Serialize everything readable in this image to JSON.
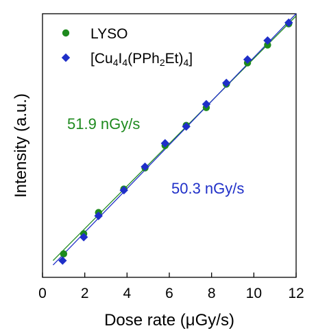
{
  "chart_data": {
    "type": "scatter",
    "xlabel": "Dose rate (μGy/s)",
    "ylabel": "Intensity (a.u.)",
    "xlim": [
      0,
      12
    ],
    "ylim": [
      0,
      11.8
    ],
    "x_ticks": [
      0,
      2,
      4,
      6,
      8,
      10,
      12
    ],
    "y_ticks": [],
    "grid": false,
    "legend_position": "top-left",
    "series": [
      {
        "name": "LYSO",
        "marker": "circle",
        "color": "#1e8a1e",
        "x": [
          1.0,
          1.95,
          2.65,
          3.85,
          4.85,
          5.8,
          6.8,
          7.75,
          8.7,
          9.7,
          10.65,
          11.65
        ],
        "y": [
          1.05,
          1.95,
          2.9,
          3.95,
          4.9,
          5.9,
          6.8,
          7.6,
          8.65,
          9.6,
          10.4,
          11.35
        ],
        "fit": {
          "x": [
            0.5,
            12.0
          ],
          "y": [
            0.75,
            11.7
          ],
          "color": "#1e8a1e"
        }
      },
      {
        "name_parts": [
          {
            "t": "[Cu",
            "sub": false
          },
          {
            "t": "4",
            "sub": true
          },
          {
            "t": "I",
            "sub": false
          },
          {
            "t": "4",
            "sub": true
          },
          {
            "t": "(PPh",
            "sub": false
          },
          {
            "t": "2",
            "sub": true
          },
          {
            "t": "Et)",
            "sub": false
          },
          {
            "t": "4",
            "sub": true
          },
          {
            "t": "]",
            "sub": false
          }
        ],
        "marker": "diamond",
        "color": "#1f2fc8",
        "x": [
          0.95,
          1.95,
          2.65,
          3.85,
          4.85,
          5.8,
          6.8,
          7.75,
          8.7,
          9.7,
          10.65,
          11.65
        ],
        "y": [
          0.75,
          1.8,
          2.75,
          3.9,
          4.95,
          6.0,
          6.75,
          7.75,
          8.7,
          9.75,
          10.6,
          11.4
        ],
        "fit": {
          "x": [
            0.5,
            12.0
          ],
          "y": [
            0.55,
            11.8
          ],
          "color": "#1f2fc8"
        }
      }
    ],
    "annotations": [
      {
        "text": "51.9 nGy/s",
        "color": "#1e8a1e"
      },
      {
        "text": "50.3 nGy/s",
        "color": "#1f2fc8"
      }
    ]
  }
}
